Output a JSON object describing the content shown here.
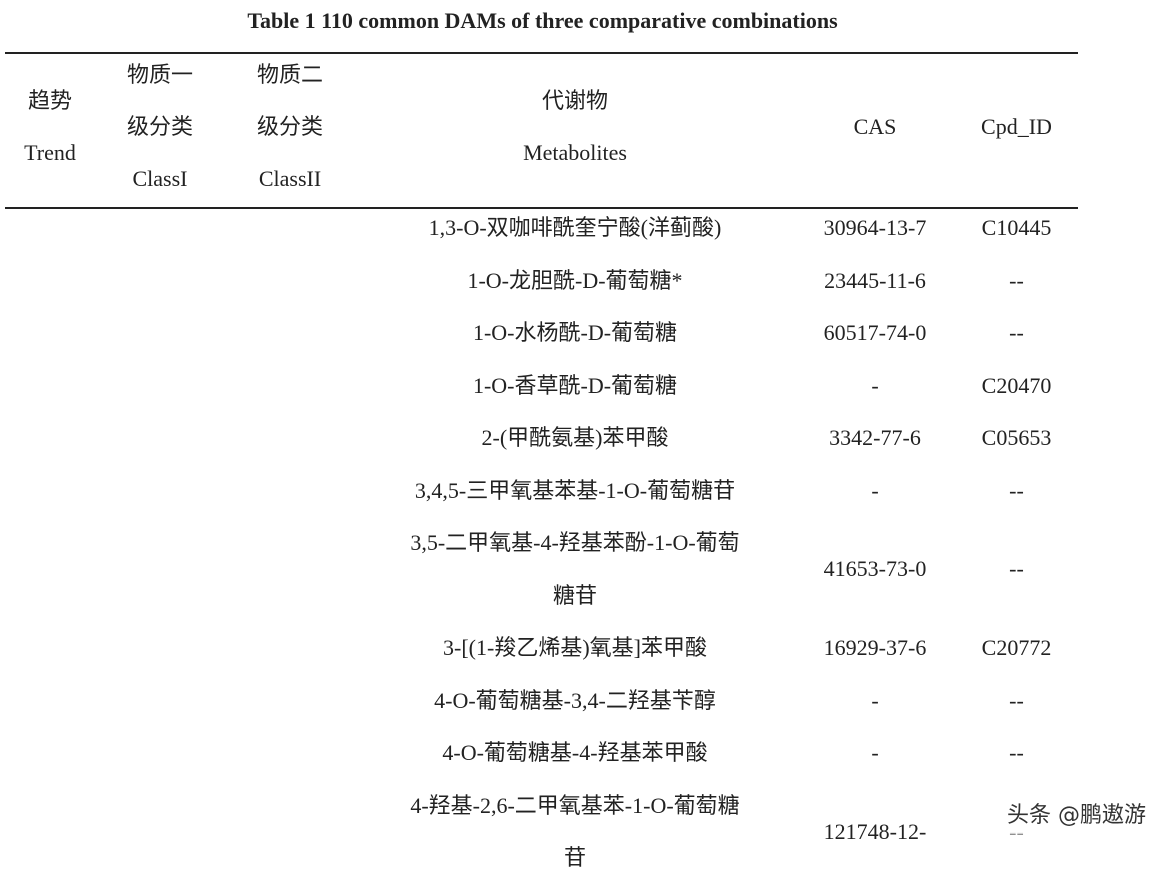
{
  "title": "Table 1 110 common DAMs of three comparative combinations",
  "table": {
    "header": [
      [
        "趋势",
        "Trend"
      ],
      [
        "物质一",
        "级分类",
        "ClassI"
      ],
      [
        "物质二",
        "级分类",
        "ClassII"
      ],
      [
        "代谢物",
        "Metabolites"
      ],
      [
        "CAS"
      ],
      [
        "Cpd_ID"
      ]
    ],
    "rows": [
      [
        "1,3-O-双咖啡酰奎宁酸(洋蓟酸)",
        "30964-13-7",
        "C10445"
      ],
      [
        "1-O-龙胆酰-D-葡萄糖*",
        "23445-11-6",
        "--"
      ],
      [
        "1-O-水杨酰-D-葡萄糖",
        "60517-74-0",
        "--"
      ],
      [
        "1-O-香草酰-D-葡萄糖",
        "-",
        "C20470"
      ],
      [
        "2-(甲酰氨基)苯甲酸",
        "3342-77-6",
        "C05653"
      ],
      [
        "3,4,5-三甲氧基苯基-1-O-葡萄糖苷",
        "-",
        "--"
      ],
      [
        [
          "3,5-二甲氧基-4-羟基苯酚-1-O-葡萄",
          "糖苷"
        ],
        "41653-73-0",
        "--"
      ],
      [
        "3-[(1-羧乙烯基)氧基]苯甲酸",
        "16929-37-6",
        "C20772"
      ],
      [
        "4-O-葡萄糖基-3,4-二羟基苄醇",
        "-",
        "--"
      ],
      [
        "4-O-葡萄糖基-4-羟基苯甲酸",
        "-",
        "--"
      ],
      [
        [
          "4-羟基-2,6-二甲氧基苯-1-O-葡萄糖",
          "苷"
        ],
        "121748-12-",
        "--"
      ]
    ]
  },
  "watermark": "头条 @鹏遨游"
}
